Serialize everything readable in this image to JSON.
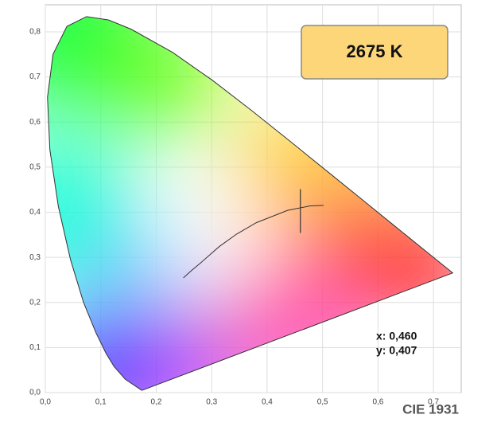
{
  "chart_data": {
    "type": "chromaticity",
    "title": "CIE 1931",
    "xlim": [
      0,
      0.75
    ],
    "ylim": [
      0,
      0.86
    ],
    "xticks": [
      {
        "value": 0,
        "label": "0,0"
      },
      {
        "value": 0.1,
        "label": "0,1"
      },
      {
        "value": 0.2,
        "label": "0,2"
      },
      {
        "value": 0.3,
        "label": "0,3"
      },
      {
        "value": 0.4,
        "label": "0,4"
      },
      {
        "value": 0.5,
        "label": "0,5"
      },
      {
        "value": 0.6,
        "label": "0,6"
      },
      {
        "value": 0.7,
        "label": "0,7"
      }
    ],
    "yticks": [
      {
        "value": 0,
        "label": "0,0"
      },
      {
        "value": 0.1,
        "label": "0,1"
      },
      {
        "value": 0.2,
        "label": "0,2"
      },
      {
        "value": 0.3,
        "label": "0,3"
      },
      {
        "value": 0.4,
        "label": "0,4"
      },
      {
        "value": 0.5,
        "label": "0,5"
      },
      {
        "value": 0.6,
        "label": "0,6"
      },
      {
        "value": 0.7,
        "label": "0,7"
      },
      {
        "value": 0.8,
        "label": "0,8"
      }
    ],
    "grid": true,
    "series": [
      {
        "color": "#333333",
        "x": [
          0.1741,
          0.144,
          0.1241,
          0.1096,
          0.0913,
          0.0687,
          0.0454,
          0.0235,
          0.0082,
          0.0039,
          0.0139,
          0.0389,
          0.0743,
          0.1142,
          0.1547,
          0.2296,
          0.3016,
          0.3731,
          0.4441,
          0.5125,
          0.5752,
          0.627,
          0.6915,
          0.7347,
          0.1741
        ],
        "y": [
          0.005,
          0.0297,
          0.0578,
          0.0868,
          0.1327,
          0.2007,
          0.295,
          0.4127,
          0.5384,
          0.6548,
          0.7502,
          0.812,
          0.8338,
          0.8262,
          0.8059,
          0.7543,
          0.6923,
          0.6245,
          0.5547,
          0.4866,
          0.4242,
          0.3725,
          0.3083,
          0.2653,
          0.005
        ]
      },
      {
        "color": "#333333",
        "x": [
          0.249,
          0.2637,
          0.2807,
          0.3135,
          0.3451,
          0.3805,
          0.4369,
          0.4769,
          0.5018
        ],
        "y": [
          0.2545,
          0.2708,
          0.2883,
          0.3237,
          0.3516,
          0.3768,
          0.4041,
          0.4138,
          0.4153
        ]
      }
    ],
    "point": {
      "x": 0.46,
      "y": 0.407,
      "labels": [
        "x: 0,460",
        "y: 0,407"
      ]
    },
    "cct_label": "2675 K"
  }
}
